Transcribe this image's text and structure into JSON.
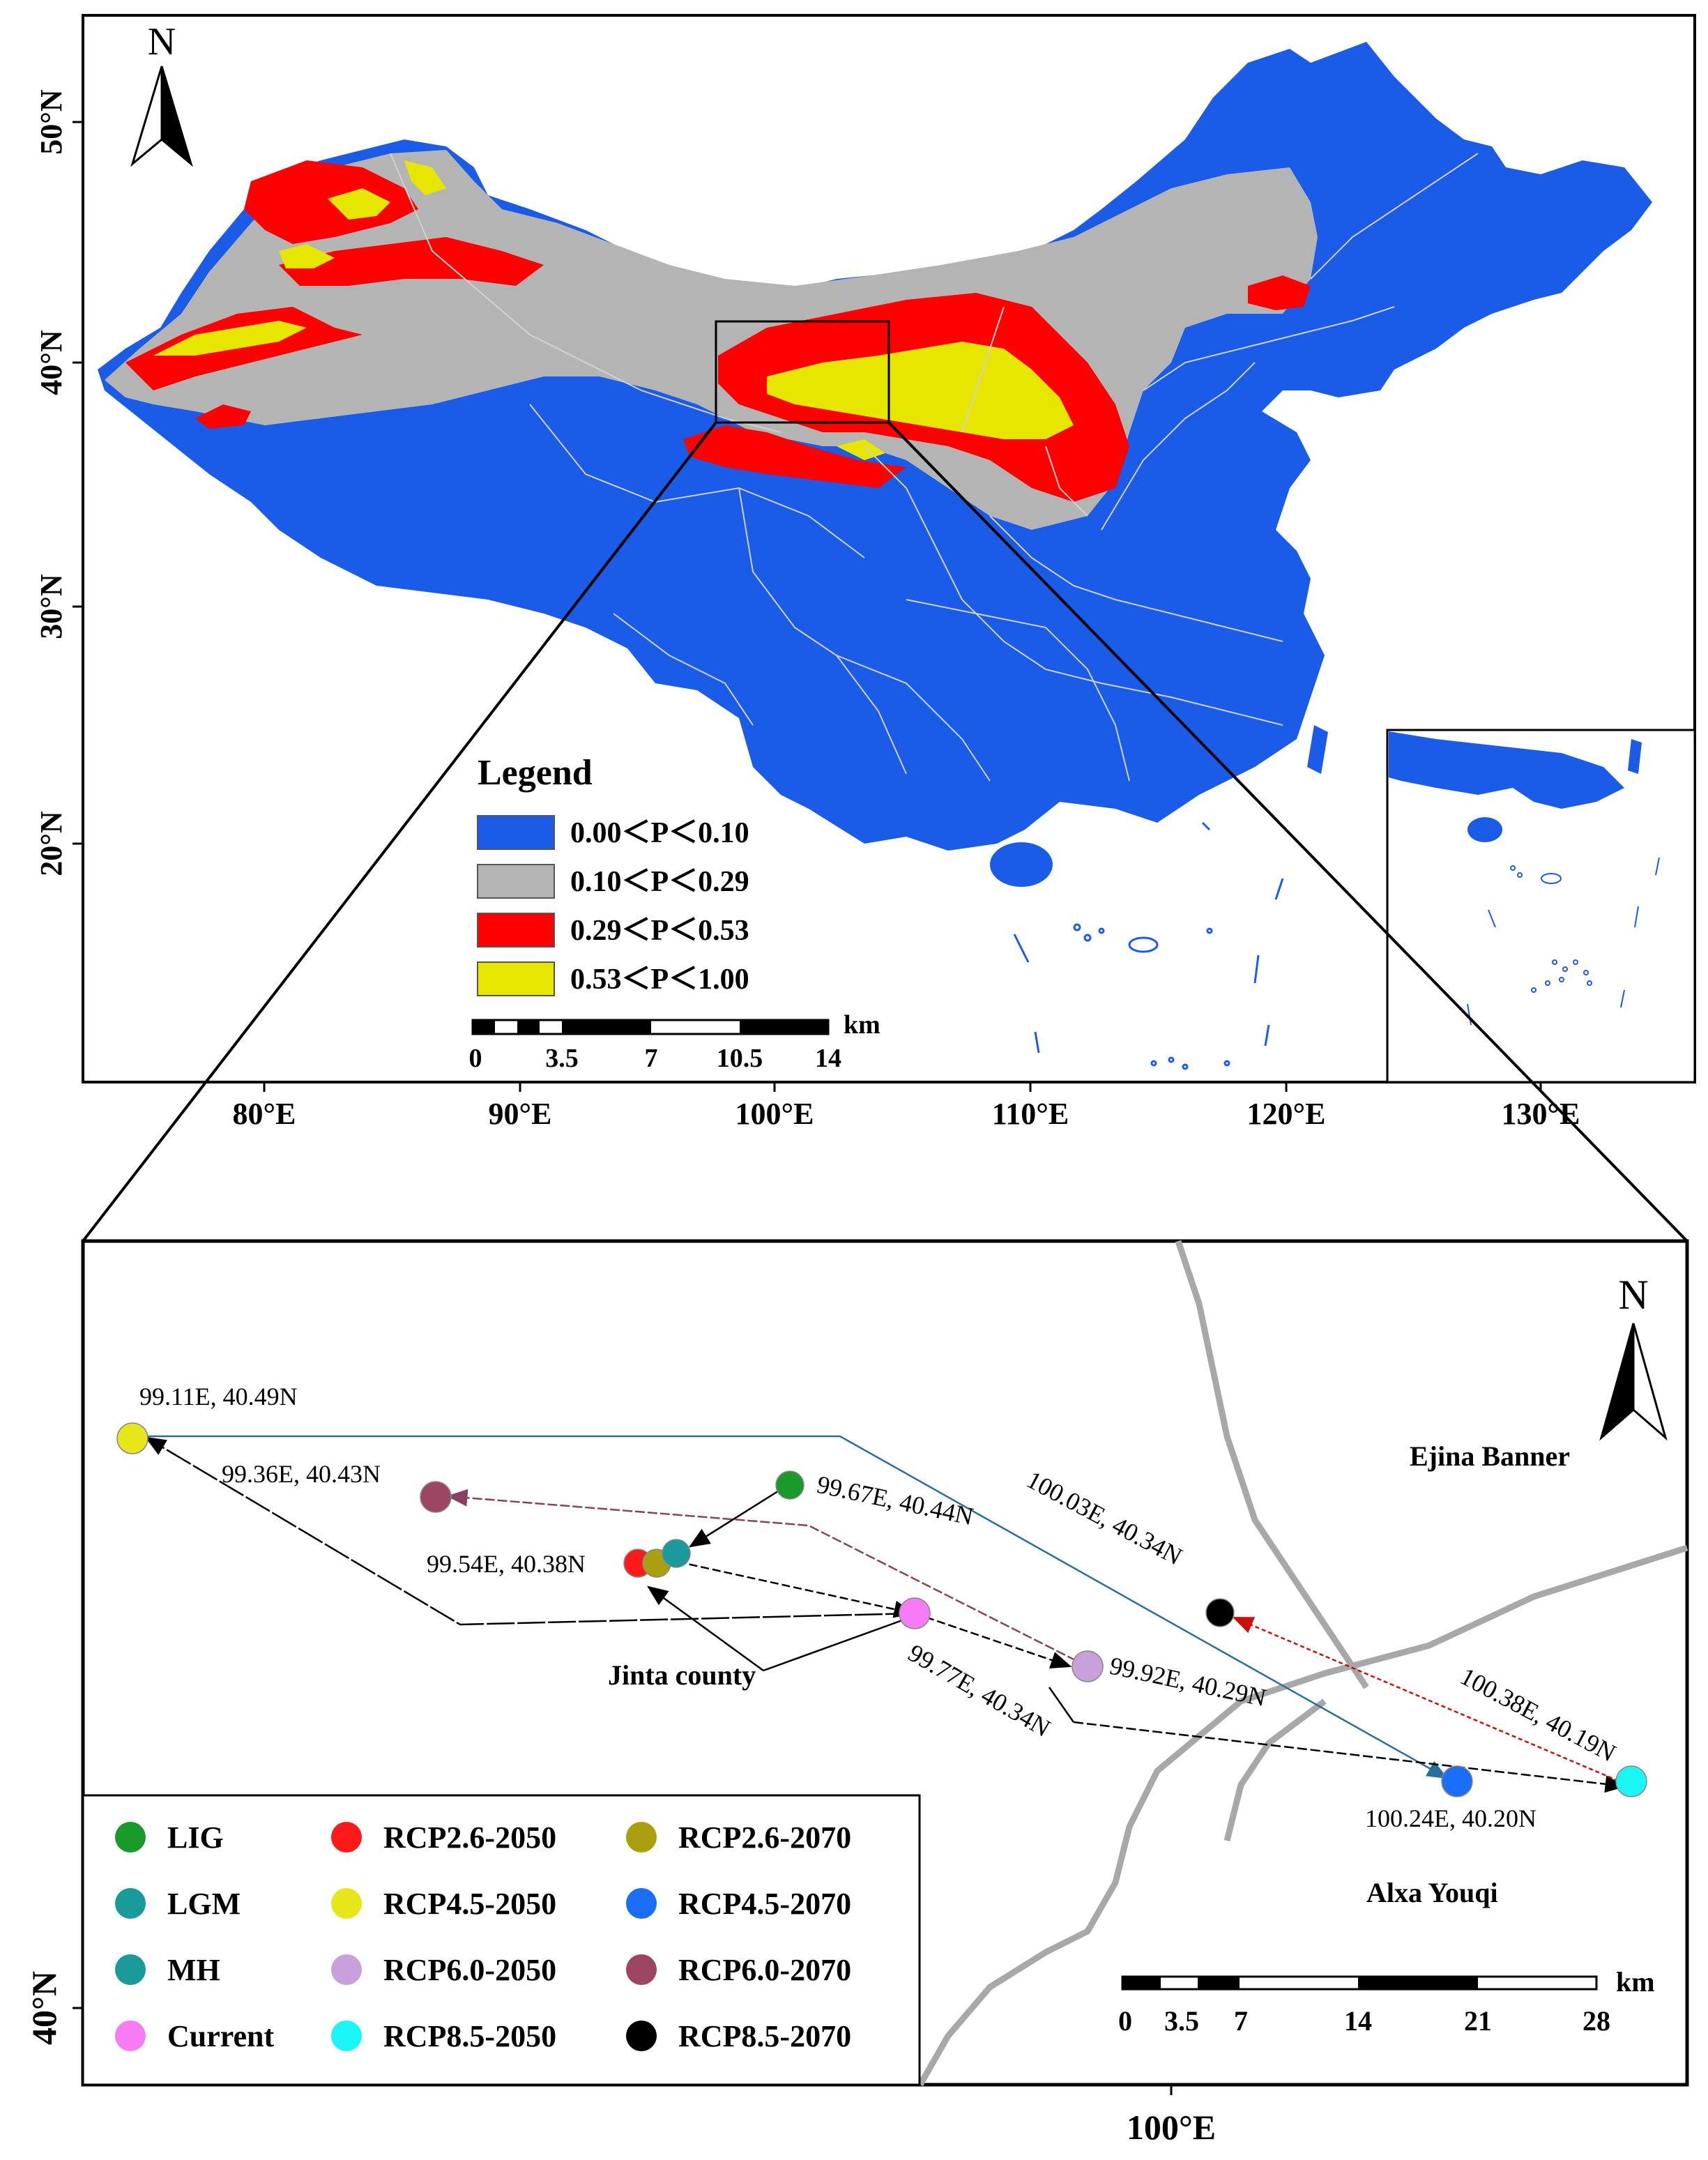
{
  "colors": {
    "blue": "#1a5ce8",
    "grey": "#b4b4b4",
    "red": "#ff0000",
    "yellow": "#e6e600",
    "boundary": "#a8a8a8",
    "lig": "#1a9a2a",
    "lgm": "#1a9a9a",
    "mh": "#1a9a9a",
    "current": "#f57cf5",
    "rcp26_2050": "#ff1a1a",
    "rcp26_2070": "#a8a010",
    "rcp45_2050": "#e6e61a",
    "rcp45_2070": "#1a6ef5",
    "rcp60_2050": "#c8a0dc",
    "rcp60_2070": "#9c4664",
    "rcp85_2050": "#1af5f5",
    "rcp85_2070": "#000000"
  },
  "top_map": {
    "north_label": "N",
    "lat_labels": [
      "50°N",
      "40°N",
      "30°N",
      "20°N"
    ],
    "lon_labels": [
      "80°E",
      "90°E",
      "100°E",
      "110°E",
      "120°E",
      "130°E"
    ],
    "legend": {
      "title": "Legend",
      "items": [
        {
          "label": "0.00＜P＜0.10",
          "color": "#1a5ce8"
        },
        {
          "label": "0.10＜P＜0.29",
          "color": "#b4b4b4"
        },
        {
          "label": "0.29＜P＜0.53",
          "color": "#ff0000"
        },
        {
          "label": "0.53＜P＜1.00",
          "color": "#e6e600"
        }
      ]
    },
    "scale": {
      "unit": "km",
      "ticks": [
        "0",
        "3.5",
        "7",
        "10.5",
        "14"
      ]
    }
  },
  "detail_map": {
    "north_label": "N",
    "lat_label": "40°N",
    "lon_label": "100°E",
    "places": [
      "Ejina Banner",
      "Jinta county",
      "Alxa Youqi"
    ],
    "points": [
      {
        "id": "rcp45_2050",
        "coord": "99.11E, 40.49N"
      },
      {
        "id": "rcp60_2070",
        "coord": "99.36E, 40.43N"
      },
      {
        "id": "lig",
        "coord": "99.67E, 40.44N"
      },
      {
        "id": "rcp26_2050",
        "coord": "99.54E, 40.38N"
      },
      {
        "id": "current",
        "coord": "99.77E, 40.34N"
      },
      {
        "id": "rcp60_2050",
        "coord": "99.92E, 40.29N"
      },
      {
        "id": "rcp85_2070",
        "coord": "100.03E, 40.34N"
      },
      {
        "id": "rcp85_2050",
        "coord": "100.38E, 40.19N"
      },
      {
        "id": "rcp45_2070",
        "coord": "100.24E, 40.20N"
      }
    ],
    "legend": [
      [
        "LIG",
        "RCP2.6-2050",
        "RCP2.6-2070"
      ],
      [
        "LGM",
        "RCP4.5-2050",
        "RCP4.5-2070"
      ],
      [
        "MH",
        "RCP6.0-2050",
        "RCP6.0-2070"
      ],
      [
        "Current",
        "RCP8.5-2050",
        "RCP8.5-2070"
      ]
    ],
    "scale": {
      "unit": "km",
      "ticks": [
        "0",
        "3.5",
        "7",
        "14",
        "21",
        "28"
      ]
    }
  }
}
